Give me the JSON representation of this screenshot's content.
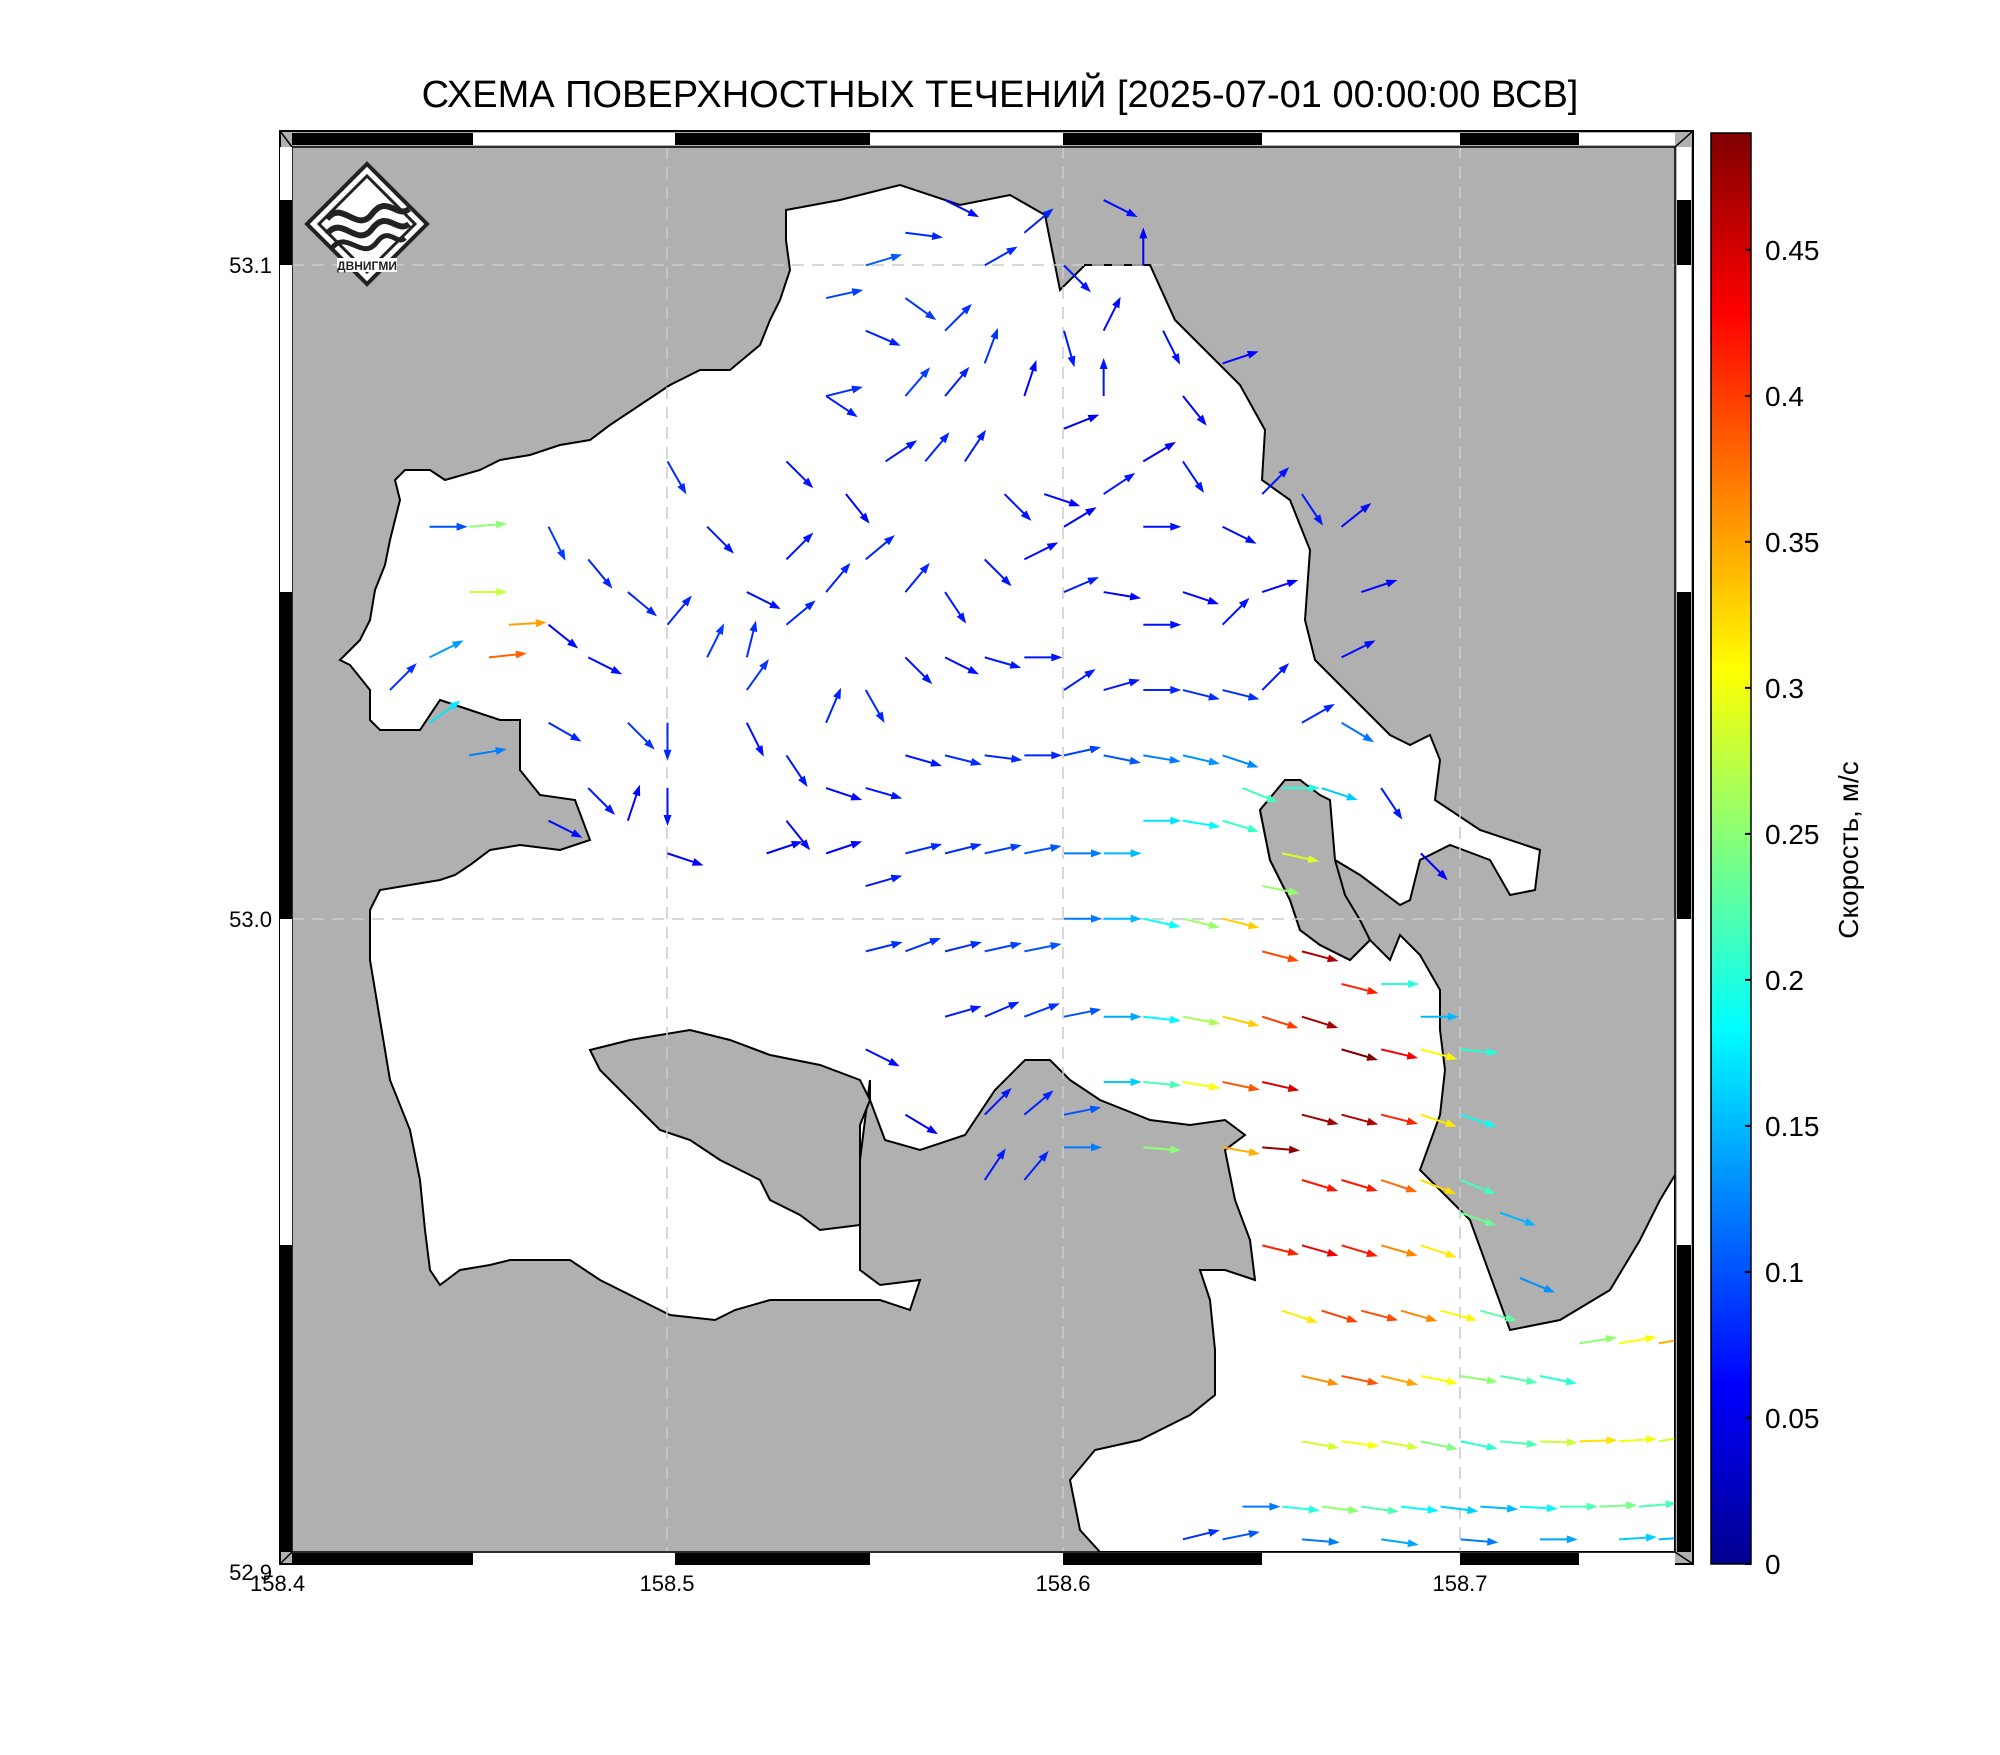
{
  "title": "СХЕМА ПОВЕРХНОСТНЫХ ТЕЧЕНИЙ [2025-07-01 00:00:00 ВСВ]",
  "logo_text": "ДВНИГМИ",
  "axes": {
    "lon_ticks": [
      "158.4",
      "158.5",
      "158.6",
      "158.7"
    ],
    "lat_ticks": [
      "53.1",
      "53.0",
      "52.9"
    ],
    "lon_range": [
      158.4,
      158.76
    ],
    "lat_range": [
      52.9,
      53.12
    ],
    "gridlines": "dashed light grey at labeled ticks"
  },
  "colorbar": {
    "label": "Скорость, м/с",
    "ticks": [
      "0",
      "0.05",
      "0.1",
      "0.15",
      "0.2",
      "0.25",
      "0.3",
      "0.35",
      "0.4",
      "0.45"
    ],
    "range": [
      0,
      0.49
    ],
    "colormap": "jet"
  },
  "colors": {
    "land": "#b0b0b0",
    "water": "#ffffff",
    "coast": "#000000"
  },
  "currents": {
    "description_units": "lon, lat, u, v in m/s",
    "vectors": [
      [
        158.44,
        53.06,
        0.1,
        0.0
      ],
      [
        158.45,
        53.06,
        0.25,
        0.02
      ],
      [
        158.45,
        53.05,
        0.28,
        0.0
      ],
      [
        158.46,
        53.045,
        0.35,
        0.02
      ],
      [
        158.455,
        53.04,
        0.38,
        0.04
      ],
      [
        158.44,
        53.04,
        0.12,
        0.06
      ],
      [
        158.43,
        53.035,
        0.06,
        0.06
      ],
      [
        158.44,
        53.03,
        0.14,
        0.1
      ],
      [
        158.45,
        53.025,
        0.12,
        0.02
      ],
      [
        158.47,
        53.06,
        0.04,
        -0.08
      ],
      [
        158.48,
        53.055,
        0.05,
        -0.06
      ],
      [
        158.49,
        53.05,
        0.06,
        -0.05
      ],
      [
        158.47,
        53.045,
        0.05,
        -0.04
      ],
      [
        158.48,
        53.04,
        0.06,
        -0.03
      ],
      [
        158.47,
        53.03,
        0.07,
        -0.04
      ],
      [
        158.49,
        53.03,
        0.06,
        -0.06
      ],
      [
        158.48,
        53.02,
        0.05,
        -0.05
      ],
      [
        158.47,
        53.015,
        0.06,
        -0.03
      ],
      [
        158.5,
        53.07,
        0.04,
        -0.07
      ],
      [
        158.51,
        53.06,
        0.05,
        -0.05
      ],
      [
        158.52,
        53.05,
        0.06,
        -0.03
      ],
      [
        158.5,
        53.045,
        0.05,
        0.06
      ],
      [
        158.51,
        53.04,
        0.04,
        0.08
      ],
      [
        158.52,
        53.035,
        0.05,
        0.07
      ],
      [
        158.53,
        53.045,
        0.06,
        0.05
      ],
      [
        158.5,
        53.03,
        0.0,
        -0.08
      ],
      [
        158.5,
        53.02,
        0.0,
        -0.07
      ],
      [
        158.49,
        53.015,
        0.02,
        0.06
      ],
      [
        158.5,
        53.01,
        0.06,
        -0.02
      ],
      [
        158.53,
        53.07,
        0.05,
        -0.05
      ],
      [
        158.54,
        53.08,
        0.06,
        -0.04
      ],
      [
        158.55,
        53.09,
        0.07,
        -0.03
      ],
      [
        158.54,
        53.095,
        0.09,
        0.02
      ],
      [
        158.55,
        53.1,
        0.1,
        0.03
      ],
      [
        158.56,
        53.105,
        0.08,
        -0.01
      ],
      [
        158.57,
        53.11,
        0.06,
        -0.03
      ],
      [
        158.56,
        53.095,
        0.07,
        -0.05
      ],
      [
        158.57,
        53.09,
        0.06,
        0.06
      ],
      [
        158.58,
        53.1,
        0.07,
        0.04
      ],
      [
        158.59,
        53.105,
        0.06,
        0.05
      ],
      [
        158.6,
        53.1,
        0.05,
        -0.05
      ],
      [
        158.61,
        53.11,
        0.06,
        -0.03
      ],
      [
        158.6,
        53.09,
        0.02,
        -0.07
      ],
      [
        158.61,
        53.09,
        0.03,
        0.06
      ],
      [
        158.54,
        53.08,
        0.08,
        0.02
      ],
      [
        158.56,
        53.08,
        0.06,
        0.07
      ],
      [
        158.57,
        53.08,
        0.05,
        0.06
      ],
      [
        158.58,
        53.085,
        0.03,
        0.08
      ],
      [
        158.59,
        53.08,
        0.02,
        0.06
      ],
      [
        158.6,
        53.075,
        0.05,
        0.02
      ],
      [
        158.61,
        53.08,
        0.0,
        0.07
      ],
      [
        158.62,
        53.1,
        0.0,
        0.06
      ],
      [
        158.625,
        53.09,
        0.03,
        -0.06
      ],
      [
        158.63,
        53.08,
        0.04,
        -0.05
      ],
      [
        158.64,
        53.085,
        0.06,
        0.02
      ],
      [
        158.62,
        53.07,
        0.05,
        0.03
      ],
      [
        158.545,
        53.065,
        0.04,
        -0.05
      ],
      [
        158.555,
        53.07,
        0.06,
        0.04
      ],
      [
        158.565,
        53.07,
        0.05,
        0.06
      ],
      [
        158.575,
        53.07,
        0.04,
        0.06
      ],
      [
        158.585,
        53.065,
        0.05,
        -0.05
      ],
      [
        158.595,
        53.065,
        0.06,
        -0.02
      ],
      [
        158.6,
        53.06,
        0.05,
        0.03
      ],
      [
        158.61,
        53.065,
        0.06,
        0.04
      ],
      [
        158.62,
        53.06,
        0.07,
        0.0
      ],
      [
        158.63,
        53.07,
        0.04,
        -0.06
      ],
      [
        158.64,
        53.06,
        0.06,
        -0.03
      ],
      [
        158.65,
        53.065,
        0.05,
        0.05
      ],
      [
        158.53,
        53.055,
        0.05,
        0.05
      ],
      [
        158.54,
        53.05,
        0.05,
        0.06
      ],
      [
        158.55,
        53.055,
        0.06,
        0.05
      ],
      [
        158.56,
        53.05,
        0.05,
        0.06
      ],
      [
        158.57,
        53.05,
        0.04,
        -0.06
      ],
      [
        158.58,
        53.055,
        0.05,
        -0.05
      ],
      [
        158.59,
        53.055,
        0.06,
        0.03
      ],
      [
        158.6,
        53.05,
        0.07,
        0.03
      ],
      [
        158.61,
        53.05,
        0.06,
        -0.01
      ],
      [
        158.62,
        53.045,
        0.07,
        0.0
      ],
      [
        158.63,
        53.05,
        0.06,
        -0.02
      ],
      [
        158.64,
        53.045,
        0.05,
        0.05
      ],
      [
        158.65,
        53.05,
        0.06,
        0.02
      ],
      [
        158.52,
        53.04,
        0.02,
        0.08
      ],
      [
        158.52,
        53.03,
        0.03,
        -0.06
      ],
      [
        158.53,
        53.025,
        0.04,
        -0.06
      ],
      [
        158.54,
        53.03,
        0.03,
        0.07
      ],
      [
        158.55,
        53.035,
        0.04,
        -0.07
      ],
      [
        158.56,
        53.04,
        0.05,
        -0.05
      ],
      [
        158.57,
        53.04,
        0.06,
        -0.03
      ],
      [
        158.58,
        53.04,
        0.07,
        -0.02
      ],
      [
        158.59,
        53.04,
        0.07,
        0.0
      ],
      [
        158.6,
        53.035,
        0.06,
        0.04
      ],
      [
        158.61,
        53.035,
        0.07,
        0.02
      ],
      [
        158.62,
        53.035,
        0.08,
        0.0
      ],
      [
        158.63,
        53.035,
        0.08,
        -0.02
      ],
      [
        158.64,
        53.035,
        0.08,
        -0.02
      ],
      [
        158.65,
        53.035,
        0.05,
        0.05
      ],
      [
        158.53,
        53.015,
        0.04,
        -0.05
      ],
      [
        158.54,
        53.02,
        0.06,
        -0.02
      ],
      [
        158.55,
        53.02,
        0.07,
        -0.02
      ],
      [
        158.56,
        53.025,
        0.07,
        -0.02
      ],
      [
        158.57,
        53.025,
        0.08,
        -0.02
      ],
      [
        158.58,
        53.025,
        0.08,
        -0.01
      ],
      [
        158.59,
        53.025,
        0.08,
        0.0
      ],
      [
        158.6,
        53.025,
        0.09,
        0.02
      ],
      [
        158.61,
        53.025,
        0.1,
        -0.02
      ],
      [
        158.62,
        53.025,
        0.12,
        -0.02
      ],
      [
        158.63,
        53.025,
        0.13,
        -0.03
      ],
      [
        158.64,
        53.025,
        0.12,
        -0.04
      ],
      [
        158.525,
        53.01,
        0.06,
        0.02
      ],
      [
        158.54,
        53.01,
        0.06,
        0.02
      ],
      [
        158.55,
        53.005,
        0.07,
        0.02
      ],
      [
        158.56,
        53.01,
        0.08,
        0.02
      ],
      [
        158.57,
        53.01,
        0.08,
        0.02
      ],
      [
        158.58,
        53.01,
        0.09,
        0.02
      ],
      [
        158.59,
        53.01,
        0.1,
        0.02
      ],
      [
        158.6,
        53.01,
        0.12,
        0.0
      ],
      [
        158.61,
        53.01,
        0.15,
        0.0
      ],
      [
        158.62,
        53.015,
        0.17,
        0.0
      ],
      [
        158.63,
        53.015,
        0.18,
        -0.03
      ],
      [
        158.64,
        53.015,
        0.2,
        -0.06
      ],
      [
        158.645,
        53.02,
        0.2,
        -0.08
      ],
      [
        158.65,
        53.005,
        0.25,
        -0.05
      ],
      [
        158.655,
        53.01,
        0.28,
        -0.06
      ],
      [
        158.55,
        52.995,
        0.08,
        0.02
      ],
      [
        158.56,
        52.995,
        0.08,
        0.03
      ],
      [
        158.57,
        52.995,
        0.08,
        0.02
      ],
      [
        158.58,
        52.995,
        0.09,
        0.02
      ],
      [
        158.59,
        52.995,
        0.1,
        0.02
      ],
      [
        158.6,
        53.0,
        0.12,
        0.0
      ],
      [
        158.61,
        53.0,
        0.15,
        0.0
      ],
      [
        158.62,
        53.0,
        0.18,
        -0.04
      ],
      [
        158.63,
        53.0,
        0.25,
        -0.06
      ],
      [
        158.64,
        53.0,
        0.32,
        -0.08
      ],
      [
        158.65,
        52.995,
        0.38,
        -0.1
      ],
      [
        158.66,
        52.995,
        0.45,
        -0.12
      ],
      [
        158.67,
        52.99,
        0.4,
        -0.1
      ],
      [
        158.68,
        52.99,
        0.2,
        0.0
      ],
      [
        158.69,
        52.985,
        0.15,
        0.0
      ],
      [
        158.55,
        52.98,
        0.06,
        -0.03
      ],
      [
        158.57,
        52.985,
        0.07,
        0.02
      ],
      [
        158.58,
        52.985,
        0.07,
        0.03
      ],
      [
        158.59,
        52.985,
        0.08,
        0.03
      ],
      [
        158.6,
        52.985,
        0.1,
        0.02
      ],
      [
        158.61,
        52.985,
        0.14,
        0.0
      ],
      [
        158.62,
        52.985,
        0.18,
        -0.02
      ],
      [
        158.63,
        52.985,
        0.26,
        -0.05
      ],
      [
        158.64,
        52.985,
        0.32,
        -0.08
      ],
      [
        158.65,
        52.985,
        0.38,
        -0.12
      ],
      [
        158.66,
        52.985,
        0.45,
        -0.14
      ],
      [
        158.67,
        52.98,
        0.48,
        -0.14
      ],
      [
        158.68,
        52.98,
        0.42,
        -0.1
      ],
      [
        158.69,
        52.98,
        0.3,
        -0.08
      ],
      [
        158.7,
        52.98,
        0.2,
        -0.02
      ],
      [
        158.56,
        52.97,
        0.05,
        -0.03
      ],
      [
        158.58,
        52.97,
        0.05,
        0.05
      ],
      [
        158.59,
        52.97,
        0.06,
        0.05
      ],
      [
        158.6,
        52.97,
        0.1,
        0.02
      ],
      [
        158.61,
        52.975,
        0.16,
        0.0
      ],
      [
        158.62,
        52.975,
        0.22,
        -0.02
      ],
      [
        158.63,
        52.975,
        0.3,
        -0.05
      ],
      [
        158.64,
        52.975,
        0.38,
        -0.08
      ],
      [
        158.65,
        52.975,
        0.44,
        -0.1
      ],
      [
        158.66,
        52.97,
        0.46,
        -0.12
      ],
      [
        158.67,
        52.97,
        0.45,
        -0.12
      ],
      [
        158.68,
        52.97,
        0.4,
        -0.1
      ],
      [
        158.69,
        52.97,
        0.3,
        -0.1
      ],
      [
        158.7,
        52.97,
        0.18,
        -0.06
      ],
      [
        158.58,
        52.96,
        0.04,
        0.06
      ],
      [
        158.59,
        52.96,
        0.05,
        0.06
      ],
      [
        158.6,
        52.965,
        0.12,
        0.0
      ],
      [
        158.62,
        52.965,
        0.25,
        -0.02
      ],
      [
        158.64,
        52.965,
        0.34,
        -0.06
      ],
      [
        158.65,
        52.965,
        0.48,
        -0.04
      ],
      [
        158.66,
        52.96,
        0.4,
        -0.12
      ],
      [
        158.67,
        52.96,
        0.4,
        -0.12
      ],
      [
        158.68,
        52.96,
        0.36,
        -0.12
      ],
      [
        158.69,
        52.96,
        0.3,
        -0.12
      ],
      [
        158.7,
        52.96,
        0.2,
        -0.08
      ],
      [
        158.65,
        52.95,
        0.4,
        -0.1
      ],
      [
        158.66,
        52.95,
        0.42,
        -0.12
      ],
      [
        158.67,
        52.95,
        0.4,
        -0.12
      ],
      [
        158.68,
        52.95,
        0.35,
        -0.1
      ],
      [
        158.69,
        52.95,
        0.3,
        -0.1
      ],
      [
        158.7,
        52.955,
        0.22,
        -0.08
      ],
      [
        158.71,
        52.955,
        0.14,
        -0.05
      ],
      [
        158.655,
        52.94,
        0.3,
        -0.1
      ],
      [
        158.665,
        52.94,
        0.38,
        -0.12
      ],
      [
        158.675,
        52.94,
        0.38,
        -0.1
      ],
      [
        158.685,
        52.94,
        0.35,
        -0.1
      ],
      [
        158.695,
        52.94,
        0.3,
        -0.08
      ],
      [
        158.705,
        52.94,
        0.22,
        -0.06
      ],
      [
        158.715,
        52.945,
        0.12,
        -0.05
      ],
      [
        158.66,
        52.93,
        0.35,
        -0.08
      ],
      [
        158.67,
        52.93,
        0.38,
        -0.08
      ],
      [
        158.68,
        52.93,
        0.34,
        -0.08
      ],
      [
        158.69,
        52.93,
        0.3,
        -0.06
      ],
      [
        158.7,
        52.93,
        0.25,
        -0.04
      ],
      [
        158.71,
        52.93,
        0.22,
        -0.04
      ],
      [
        158.72,
        52.93,
        0.2,
        -0.04
      ],
      [
        158.73,
        52.935,
        0.25,
        0.04
      ],
      [
        158.74,
        52.935,
        0.3,
        0.05
      ],
      [
        158.75,
        52.935,
        0.34,
        0.06
      ],
      [
        158.66,
        52.92,
        0.28,
        -0.05
      ],
      [
        158.67,
        52.92,
        0.3,
        -0.04
      ],
      [
        158.68,
        52.92,
        0.28,
        -0.05
      ],
      [
        158.69,
        52.92,
        0.24,
        -0.05
      ],
      [
        158.7,
        52.92,
        0.2,
        -0.04
      ],
      [
        158.71,
        52.92,
        0.22,
        -0.02
      ],
      [
        158.72,
        52.92,
        0.28,
        -0.01
      ],
      [
        158.73,
        52.92,
        0.32,
        0.01
      ],
      [
        158.74,
        52.92,
        0.3,
        0.02
      ],
      [
        158.75,
        52.92,
        0.28,
        0.05
      ],
      [
        158.645,
        52.91,
        0.12,
        0.0
      ],
      [
        158.655,
        52.91,
        0.2,
        -0.02
      ],
      [
        158.665,
        52.91,
        0.25,
        -0.03
      ],
      [
        158.675,
        52.91,
        0.22,
        -0.03
      ],
      [
        158.685,
        52.91,
        0.18,
        -0.02
      ],
      [
        158.695,
        52.91,
        0.16,
        -0.02
      ],
      [
        158.705,
        52.91,
        0.15,
        -0.01
      ],
      [
        158.715,
        52.91,
        0.18,
        -0.01
      ],
      [
        158.725,
        52.91,
        0.22,
        0.0
      ],
      [
        158.735,
        52.91,
        0.24,
        0.01
      ],
      [
        158.745,
        52.91,
        0.22,
        0.02
      ],
      [
        158.755,
        52.91,
        0.2,
        0.03
      ],
      [
        158.63,
        52.905,
        0.08,
        0.02
      ],
      [
        158.64,
        52.905,
        0.1,
        0.02
      ],
      [
        158.66,
        52.905,
        0.12,
        -0.01
      ],
      [
        158.68,
        52.905,
        0.14,
        -0.02
      ],
      [
        158.7,
        52.905,
        0.12,
        -0.01
      ],
      [
        158.72,
        52.905,
        0.14,
        0.0
      ],
      [
        158.74,
        52.905,
        0.16,
        0.01
      ],
      [
        158.75,
        52.905,
        0.15,
        0.01
      ],
      [
        158.66,
        53.065,
        0.04,
        -0.06
      ],
      [
        158.67,
        53.06,
        0.05,
        0.04
      ],
      [
        158.675,
        53.05,
        0.06,
        0.02
      ],
      [
        158.67,
        53.04,
        0.06,
        0.03
      ],
      [
        158.66,
        53.03,
        0.07,
        0.04
      ],
      [
        158.655,
        53.02,
        0.2,
        0.0
      ],
      [
        158.665,
        53.02,
        0.15,
        -0.05
      ],
      [
        158.67,
        53.03,
        0.1,
        -0.06
      ],
      [
        158.68,
        53.02,
        0.04,
        -0.06
      ],
      [
        158.69,
        53.01,
        0.04,
        -0.04
      ]
    ]
  }
}
